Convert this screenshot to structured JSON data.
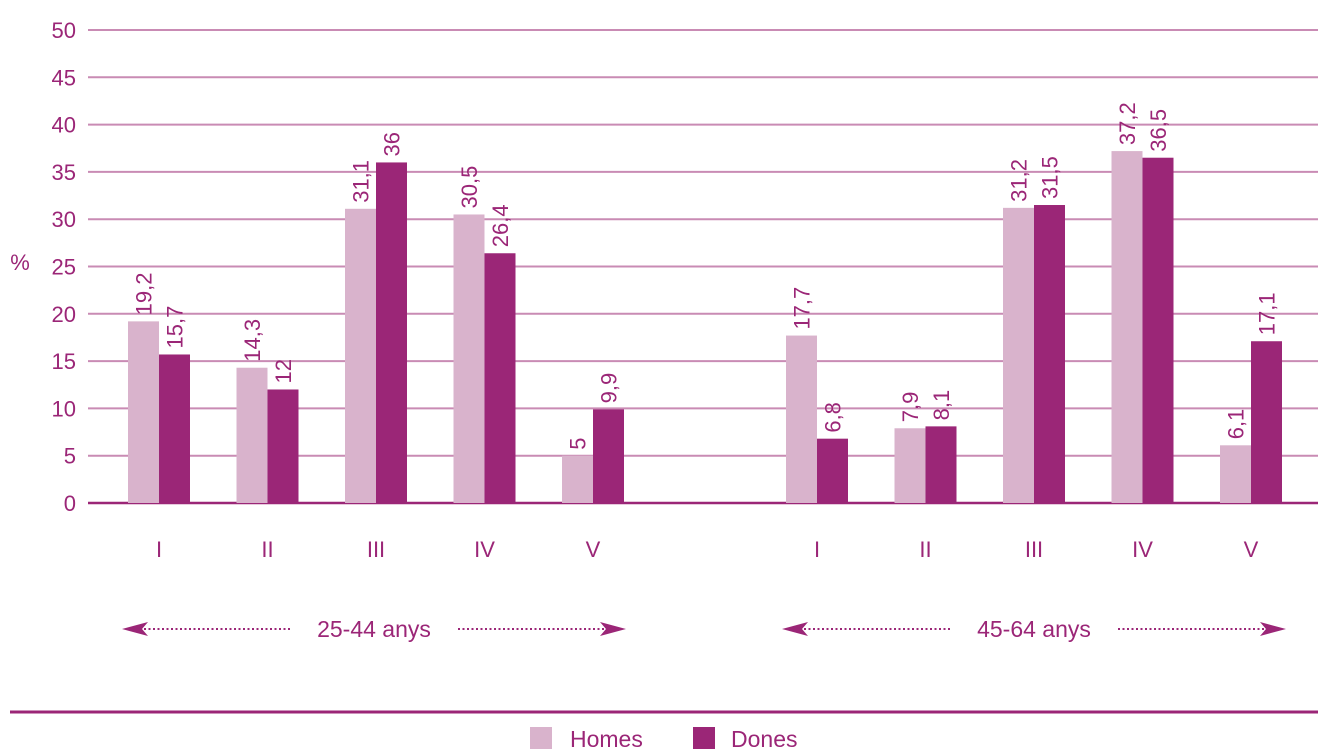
{
  "chart_data": {
    "type": "bar",
    "title": "",
    "ylabel": "%",
    "xlabel": "",
    "ylim": [
      0,
      50
    ],
    "yticks": [
      0,
      5,
      10,
      15,
      20,
      25,
      30,
      35,
      40,
      45,
      50
    ],
    "grid": true,
    "legend_position": "bottom-center",
    "groups": [
      {
        "label": "25-44 anys",
        "categories": [
          "I",
          "II",
          "III",
          "IV",
          "V"
        ],
        "series": [
          {
            "name": "Homes",
            "values": [
              19.2,
              14.3,
              31.1,
              30.5,
              5
            ],
            "labels": [
              "19,2",
              "14,3",
              "31,1",
              "30,5",
              "5"
            ]
          },
          {
            "name": "Dones",
            "values": [
              15.7,
              12,
              36,
              26.4,
              9.9
            ],
            "labels": [
              "15,7",
              "12",
              "36",
              "26,4",
              "9,9"
            ]
          }
        ]
      },
      {
        "label": "45-64 anys",
        "categories": [
          "I",
          "II",
          "III",
          "IV",
          "V"
        ],
        "series": [
          {
            "name": "Homes",
            "values": [
              17.7,
              7.9,
              31.2,
              37.2,
              6.1
            ],
            "labels": [
              "17,7",
              "7,9",
              "31,2",
              "37,2",
              "6,1"
            ]
          },
          {
            "name": "Dones",
            "values": [
              6.8,
              8.1,
              31.5,
              36.5,
              17.1
            ],
            "labels": [
              "6,8",
              "8,1",
              "31,5",
              "36,5",
              "17,1"
            ]
          }
        ]
      }
    ],
    "legend": [
      {
        "name": "Homes",
        "color": "#d9b3cc"
      },
      {
        "name": "Dones",
        "color": "#9b2677"
      }
    ],
    "colors": {
      "homes": "#d9b3cc",
      "dones": "#9b2677",
      "text": "#9b2677",
      "grid": "#c98bb4",
      "axis": "#9b2677"
    }
  }
}
